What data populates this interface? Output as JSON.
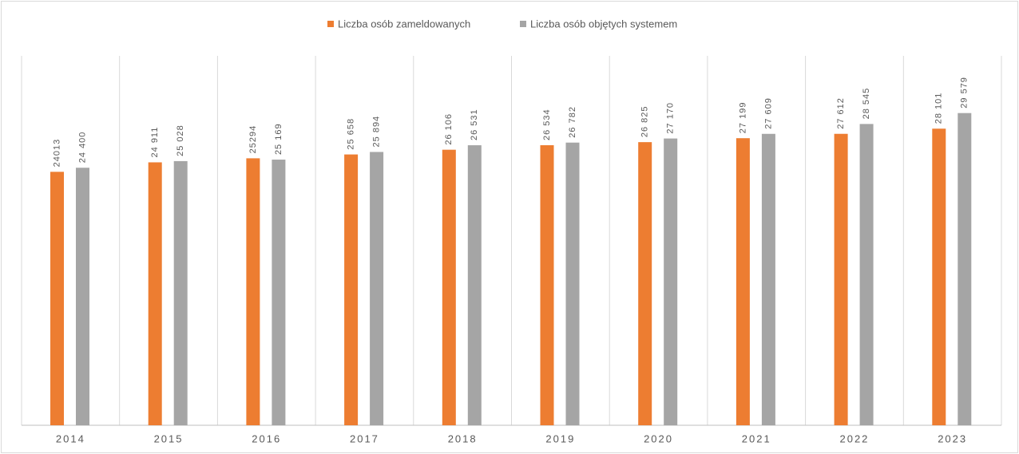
{
  "chart_data": {
    "type": "bar",
    "categories": [
      "2014",
      "2015",
      "2016",
      "2017",
      "2018",
      "2019",
      "2020",
      "2021",
      "2022",
      "2023"
    ],
    "series": [
      {
        "name": "Liczba osób zameldowanych",
        "color": "#ed7d31",
        "values": [
          24013,
          24911,
          25294,
          25658,
          26106,
          26534,
          26825,
          27199,
          27612,
          28101
        ],
        "value_labels": [
          "24013",
          "24 911",
          "25294",
          "25 658",
          "26 106",
          "26 534",
          "26 825",
          "27 199",
          "27 612",
          "28 101"
        ]
      },
      {
        "name": "Liczba osób objętych systemem",
        "color": "#a5a5a5",
        "values": [
          24400,
          25028,
          25169,
          25894,
          26531,
          26782,
          27170,
          27609,
          28545,
          29579
        ],
        "value_labels": [
          "24 400",
          "25 028",
          "25 169",
          "25 894",
          "26 531",
          "26 782",
          "27 170",
          "27 609",
          "28 545",
          "29 579"
        ]
      }
    ],
    "ylim": [
      0,
      35000
    ],
    "legend": "top"
  }
}
